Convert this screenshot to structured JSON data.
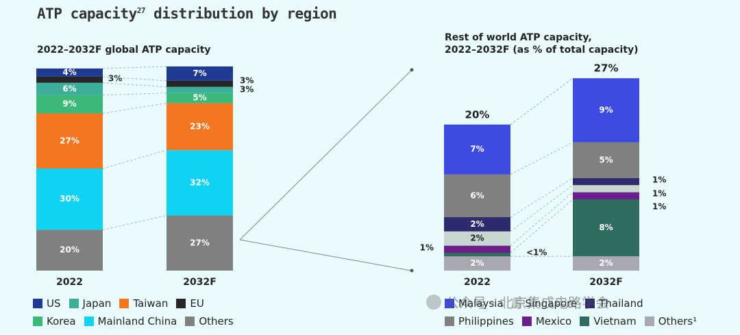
{
  "title": "ATP capacity",
  "title_superscript": "27",
  "title_rest": " distribution by region",
  "left_subtitle": "2022–2032F global ATP capacity",
  "right_subtitle_line1": "Rest of world ATP capacity,",
  "right_subtitle_line2": "2022–2032F (as % of total capacity)",
  "watermark": "公众号 · 北京集成电路学会",
  "colors": {
    "US": "#1f3a93",
    "Japan": "#3cae9a",
    "Taiwan": "#f47621",
    "EU": "#262626",
    "Korea": "#3cb878",
    "Mainland China": "#10d2f2",
    "Others": "#808080",
    "Malaysia": "#3d4be0",
    "Singapore": "#c8d6d0",
    "Thailand": "#2e2a6e",
    "Philippines": "#808080",
    "Mexico": "#6b1f8a",
    "Vietnam": "#2f6b60",
    "Others_row": "#a8a8b0"
  },
  "chart_data": [
    {
      "type": "bar",
      "stacked": true,
      "title": "2022–2032F global ATP capacity",
      "categories": [
        "2022",
        "2032F"
      ],
      "series": [
        {
          "name": "Others",
          "values": [
            20,
            27
          ]
        },
        {
          "name": "Mainland China",
          "values": [
            30,
            32
          ]
        },
        {
          "name": "Taiwan",
          "values": [
            27,
            23
          ]
        },
        {
          "name": "Korea",
          "values": [
            9,
            5
          ]
        },
        {
          "name": "Japan",
          "values": [
            6,
            3
          ]
        },
        {
          "name": "EU",
          "values": [
            3,
            3
          ]
        },
        {
          "name": "US",
          "values": [
            4,
            7
          ]
        }
      ],
      "labels": {
        "Others": [
          "20%",
          "27%"
        ],
        "Mainland China": [
          "30%",
          "32%"
        ],
        "Taiwan": [
          "27%",
          "23%"
        ],
        "Korea": [
          "9%",
          "5%"
        ],
        "Japan": [
          "6%",
          "3%"
        ],
        "EU": [
          "3%",
          "3%"
        ],
        "US": [
          "4%",
          "7%"
        ]
      },
      "legend": [
        [
          "US",
          "Japan",
          "Taiwan",
          "EU"
        ],
        [
          "Korea",
          "Mainland China",
          "Others"
        ]
      ]
    },
    {
      "type": "bar",
      "stacked": true,
      "title": "Rest of world ATP capacity, 2022–2032F (as % of total capacity)",
      "categories": [
        "2022",
        "2032F"
      ],
      "totals": [
        "20%",
        "27%"
      ],
      "series": [
        {
          "name": "Others¹",
          "values": [
            2,
            2
          ]
        },
        {
          "name": "Vietnam",
          "values": [
            0.5,
            8
          ]
        },
        {
          "name": "Mexico",
          "values": [
            1,
            1
          ]
        },
        {
          "name": "Singapore",
          "values": [
            2,
            1
          ]
        },
        {
          "name": "Thailand",
          "values": [
            2,
            1
          ]
        },
        {
          "name": "Philippines",
          "values": [
            6,
            5
          ]
        },
        {
          "name": "Malaysia",
          "values": [
            7,
            9
          ]
        }
      ],
      "labels": {
        "Others¹": [
          "2%",
          "2%"
        ],
        "Vietnam": [
          "<1%",
          "8%"
        ],
        "Mexico": [
          "1%",
          "1%"
        ],
        "Singapore": [
          "2%",
          "1%"
        ],
        "Thailand": [
          "2%",
          "1%"
        ],
        "Philippines": [
          "6%",
          "5%"
        ],
        "Malaysia": [
          "7%",
          "9%"
        ]
      },
      "legend": [
        [
          "Malaysia",
          "Singapore",
          "Thailand"
        ],
        [
          "Philippines",
          "Mexico",
          "Vietnam",
          "Others¹"
        ]
      ]
    }
  ]
}
